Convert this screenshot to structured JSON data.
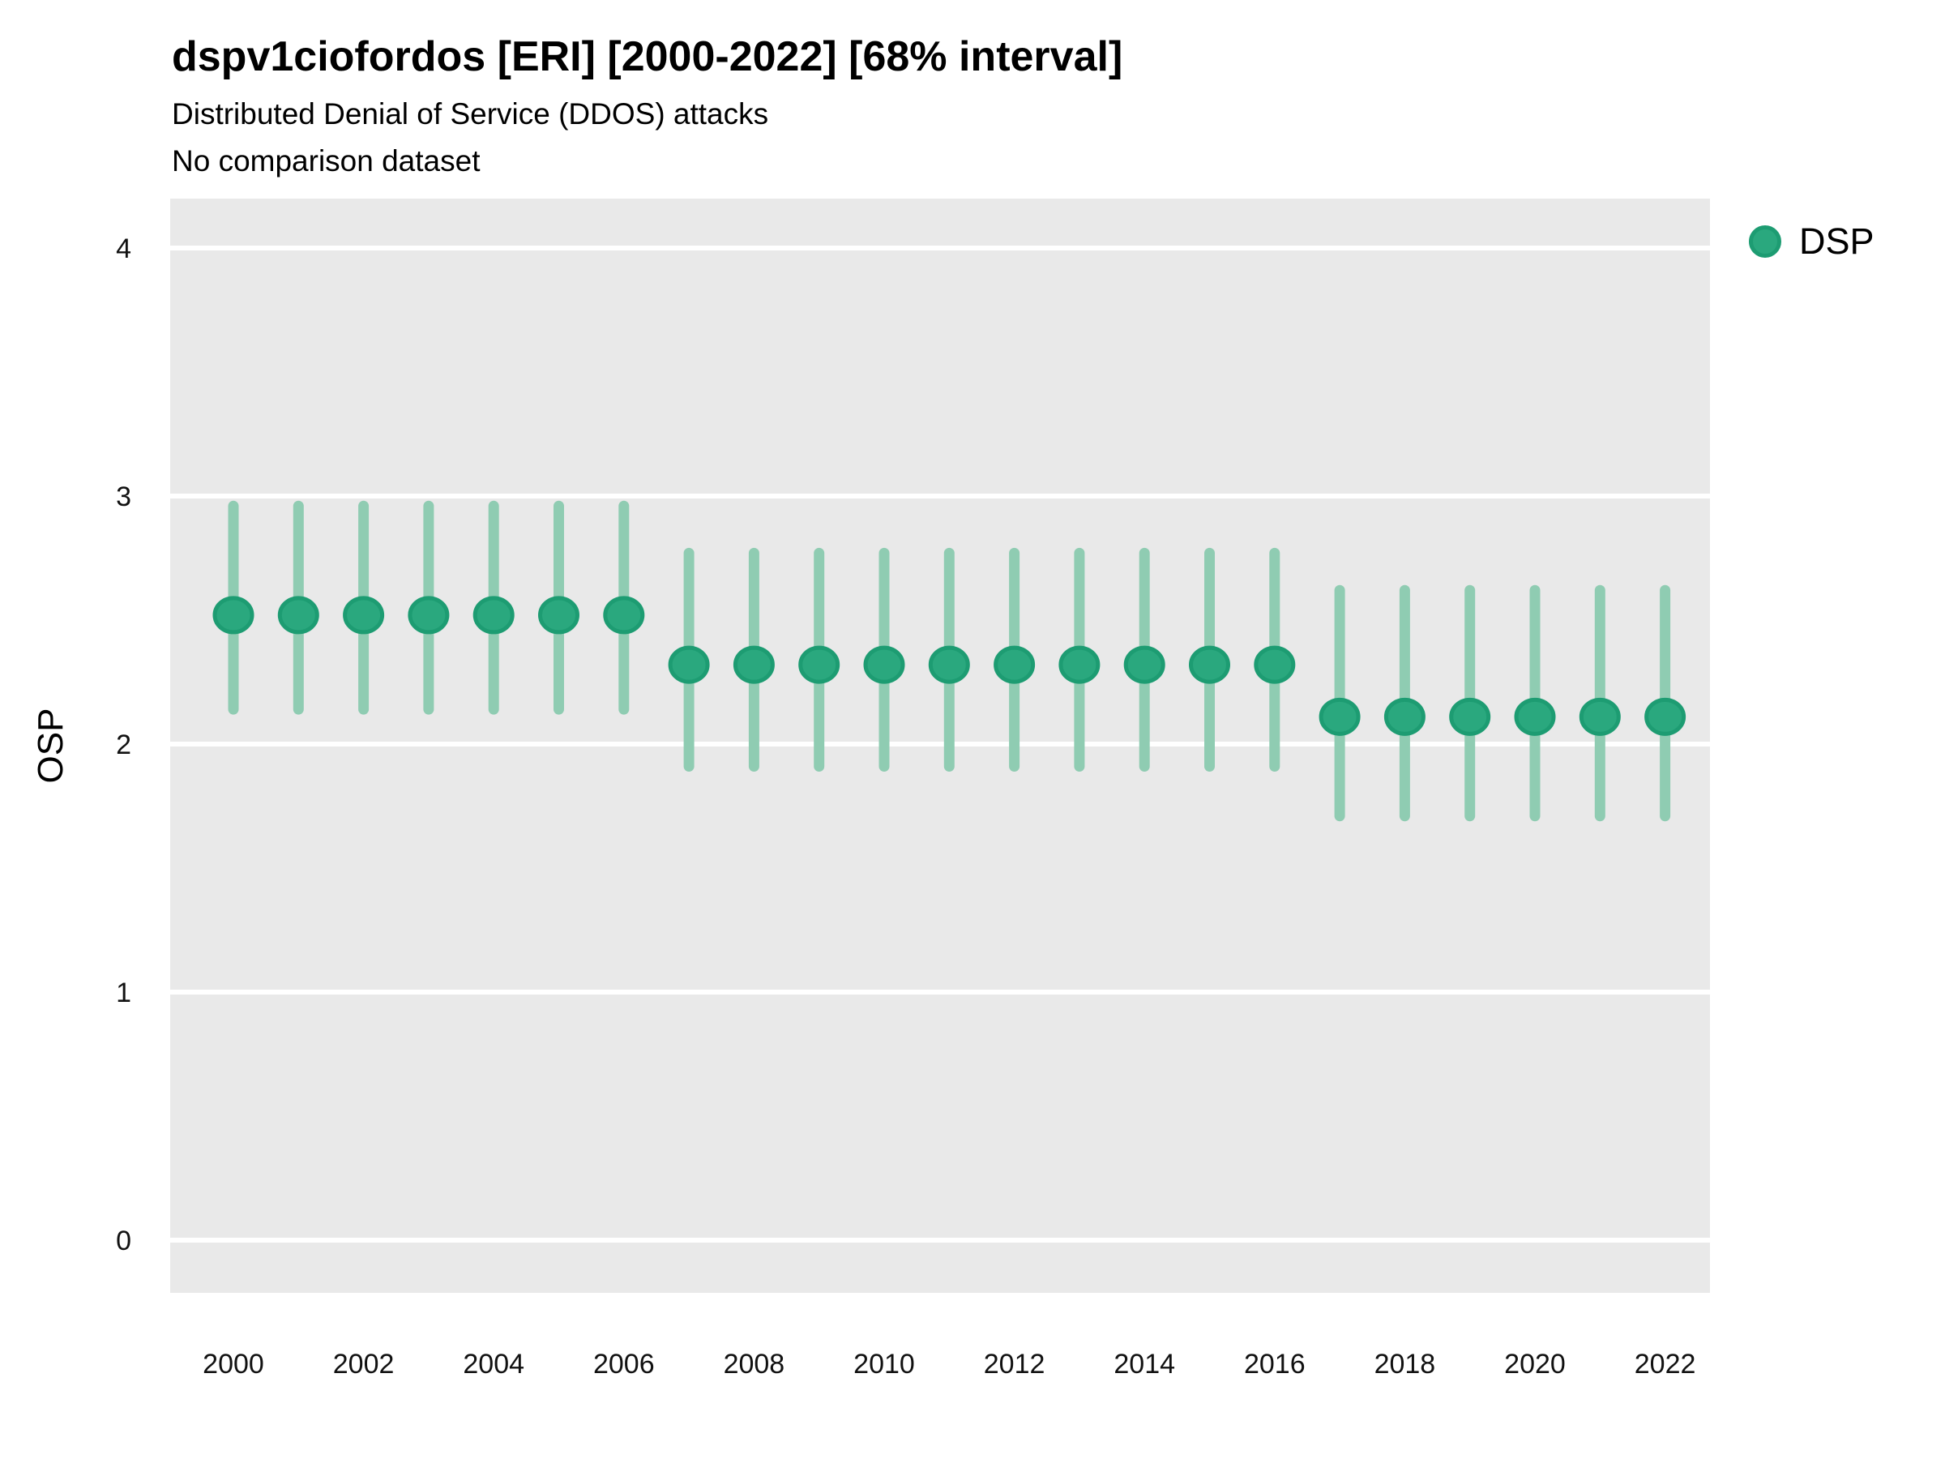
{
  "chart_data": {
    "type": "scatter",
    "title": "dspv1ciofordos [ERI] [2000-2022] [68% interval]",
    "subtitle": "Distributed Denial of Service (DDOS) attacks",
    "note": "No comparison dataset",
    "xlabel": "",
    "ylabel": "OSP",
    "interval_level": "68%",
    "grid": "horizontal white gridlines on gray panel",
    "legend_position": "right-top",
    "x": [
      2000,
      2001,
      2002,
      2003,
      2004,
      2005,
      2006,
      2007,
      2008,
      2009,
      2010,
      2011,
      2012,
      2013,
      2014,
      2015,
      2016,
      2017,
      2018,
      2019,
      2020,
      2021,
      2022
    ],
    "xticks": [
      2000,
      2002,
      2004,
      2006,
      2008,
      2010,
      2012,
      2014,
      2016,
      2018,
      2020,
      2022
    ],
    "yticks": [
      0,
      1,
      2,
      3,
      4
    ],
    "ylim": [
      -0.2,
      4.2
    ],
    "series": [
      {
        "name": "DSP",
        "values": [
          2.52,
          2.52,
          2.52,
          2.52,
          2.52,
          2.52,
          2.52,
          2.32,
          2.32,
          2.32,
          2.32,
          2.32,
          2.32,
          2.32,
          2.32,
          2.32,
          2.32,
          2.11,
          2.11,
          2.11,
          2.11,
          2.11,
          2.11
        ],
        "lower": [
          2.14,
          2.14,
          2.14,
          2.14,
          2.14,
          2.14,
          2.14,
          1.91,
          1.91,
          1.91,
          1.91,
          1.91,
          1.91,
          1.91,
          1.91,
          1.91,
          1.91,
          1.71,
          1.71,
          1.71,
          1.71,
          1.71,
          1.71
        ],
        "upper": [
          2.96,
          2.96,
          2.96,
          2.96,
          2.96,
          2.96,
          2.96,
          2.77,
          2.77,
          2.77,
          2.77,
          2.77,
          2.77,
          2.77,
          2.77,
          2.77,
          2.77,
          2.62,
          2.62,
          2.62,
          2.62,
          2.62,
          2.62
        ]
      }
    ]
  },
  "colors": {
    "point_fill": "#2aa87e",
    "point_stroke": "#1d9c72",
    "interval_bar": "#8fccb2",
    "panel_background": "#e9e9e9",
    "gridline": "#ffffff",
    "text": "#000000"
  }
}
